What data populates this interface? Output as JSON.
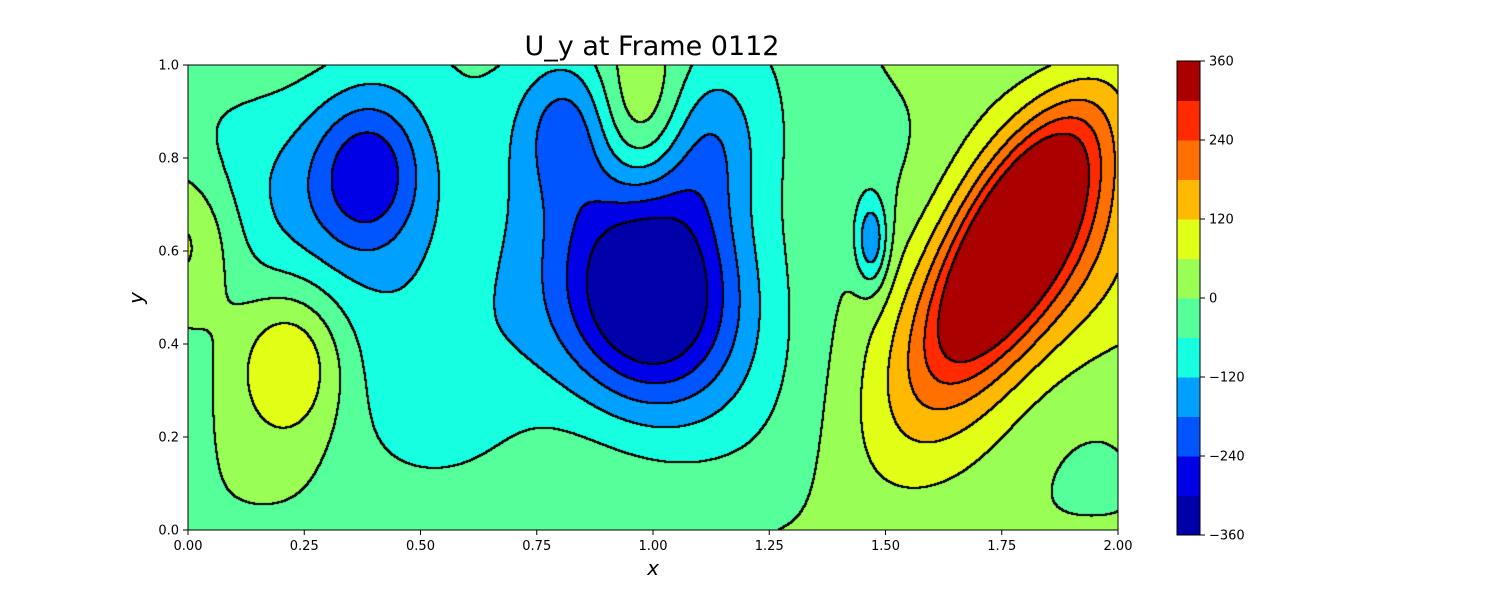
{
  "chart_data": {
    "type": "heatmap",
    "subtype": "filled-contour",
    "title": "U_y at Frame 0112",
    "xlabel": "x",
    "ylabel": "y",
    "xlim": [
      0.0,
      2.0
    ],
    "ylim": [
      0.0,
      1.0
    ],
    "x_ticks": [
      "0.00",
      "0.25",
      "0.50",
      "0.75",
      "1.00",
      "1.25",
      "1.50",
      "1.75",
      "2.00"
    ],
    "y_ticks": [
      "0.0",
      "0.2",
      "0.4",
      "0.6",
      "0.8",
      "1.0"
    ],
    "colorbar": {
      "levels": [
        -360,
        -300,
        -240,
        -180,
        -120,
        -60,
        0,
        60,
        120,
        180,
        240,
        300,
        360
      ],
      "tick_values": [
        360,
        240,
        120,
        0,
        -120,
        -240,
        -360
      ],
      "tick_labels": [
        "360",
        "240",
        "120",
        "0",
        "−120",
        "−240",
        "−360"
      ],
      "colors": [
        "#0000aa",
        "#0000e6",
        "#0055ff",
        "#00a0ff",
        "#16ffe1",
        "#55ff99",
        "#99ff55",
        "#e1ff16",
        "#ffb900",
        "#ff7000",
        "#ff2a00",
        "#aa0000"
      ]
    },
    "features": [
      {
        "name": "negative-core",
        "x": 1.0,
        "y": 0.5,
        "peak": -330
      },
      {
        "name": "negative-upper-left",
        "x": 0.39,
        "y": 0.77,
        "peak": -200
      },
      {
        "name": "negative-upper-mid",
        "x": 0.83,
        "y": 0.88,
        "peak": -170
      },
      {
        "name": "negative-right-narrow",
        "x": 1.47,
        "y": 0.62,
        "peak": -170
      },
      {
        "name": "negative-top-small",
        "x": 1.1,
        "y": 0.84,
        "peak": -130
      },
      {
        "name": "positive-core",
        "x": 1.78,
        "y": 0.63,
        "peak": 310
      },
      {
        "name": "positive-lobe-right",
        "x": 1.76,
        "y": 0.58,
        "peak": 200
      },
      {
        "name": "positive-left",
        "x": 0.22,
        "y": 0.37,
        "peak": 170
      },
      {
        "name": "positive-top",
        "x": 0.97,
        "y": 0.88,
        "peak": 180
      },
      {
        "name": "positive-left-edge",
        "x": 0.0,
        "y": 0.62,
        "peak": 130
      },
      {
        "name": "band-left-middle",
        "x": 0.25,
        "y": 0.75,
        "peak": -90
      },
      {
        "name": "band-center-wide",
        "x": 1.05,
        "y": 0.5,
        "peak": -60
      },
      {
        "name": "band-upper-wide",
        "x": 1.1,
        "y": 0.8,
        "peak": -55
      },
      {
        "name": "band-lower-left",
        "x": 0.5,
        "y": 0.39,
        "peak": -70
      },
      {
        "name": "band-right",
        "x": 1.8,
        "y": 0.55,
        "peak": 90
      }
    ]
  }
}
